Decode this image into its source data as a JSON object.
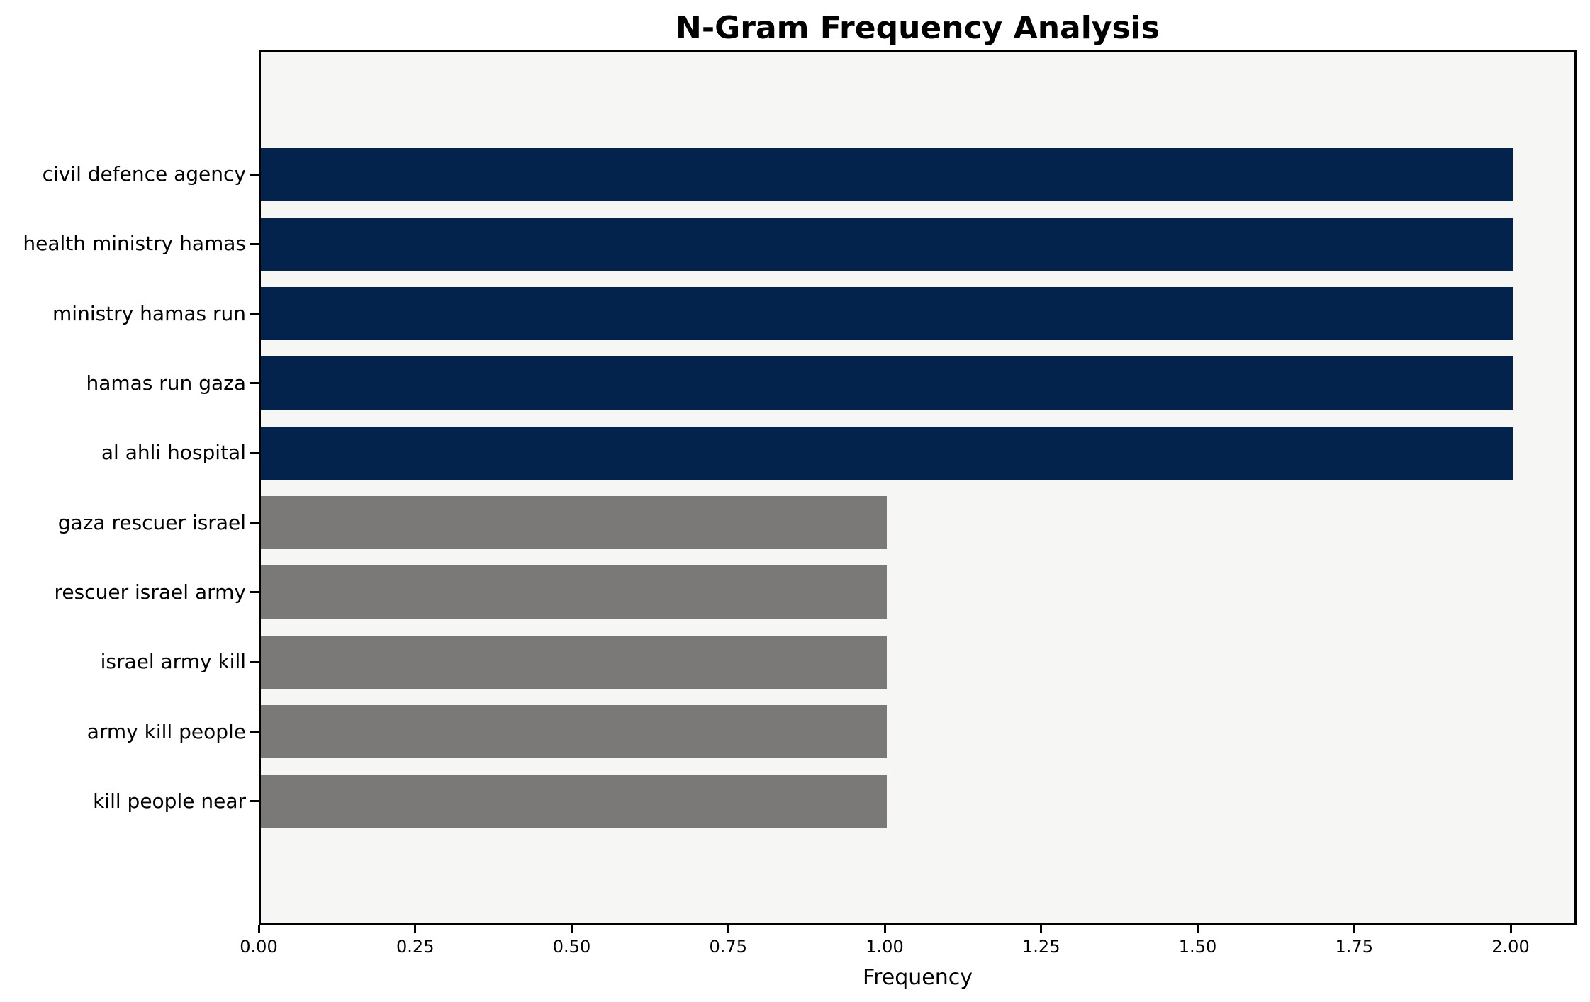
{
  "chart_data": {
    "type": "bar",
    "orientation": "horizontal",
    "title": "N-Gram Frequency Analysis",
    "xlabel": "Frequency",
    "ylabel": "",
    "categories": [
      "civil defence agency",
      "health ministry hamas",
      "ministry hamas run",
      "hamas run gaza",
      "al ahli hospital",
      "gaza rescuer israel",
      "rescuer israel army",
      "israel army kill",
      "army kill people",
      "kill people near"
    ],
    "values": [
      2,
      2,
      2,
      2,
      2,
      1,
      1,
      1,
      1,
      1
    ],
    "bar_colors": [
      "#03234c",
      "#03234c",
      "#03234c",
      "#03234c",
      "#03234c",
      "#7a7978",
      "#7a7978",
      "#7a7978",
      "#7a7978",
      "#7a7978"
    ],
    "xlim": [
      0,
      2.105
    ],
    "xtick_values": [
      0,
      0.25,
      0.5,
      0.75,
      1.0,
      1.25,
      1.5,
      1.75,
      2.0
    ],
    "xtick_labels": [
      "0.00",
      "0.25",
      "0.50",
      "0.75",
      "1.00",
      "1.25",
      "1.50",
      "1.75",
      "2.00"
    ],
    "grid": false,
    "legend": null,
    "colors": {
      "plot_background": "#f6f6f5",
      "figure_background": "#ffffff",
      "spine": "#000000",
      "bar_high": "#03234c",
      "bar_low": "#7a7978"
    }
  }
}
